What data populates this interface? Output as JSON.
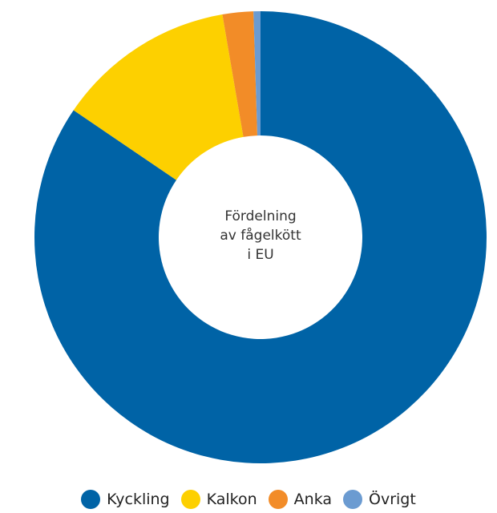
{
  "chart_data": {
    "type": "donut",
    "title": [
      "Fördelning",
      "av fågelkött",
      "i EU"
    ],
    "series": [
      {
        "name": "Kyckling",
        "color": "#0063a6",
        "value": 84.5
      },
      {
        "name": "Kalkon",
        "color": "#fdd000",
        "value": 12.8
      },
      {
        "name": "Anka",
        "color": "#f28c28",
        "value": 2.2
      },
      {
        "name": "Övrigt",
        "color": "#6b9bd1",
        "value": 0.5
      }
    ],
    "legend": "bottom"
  }
}
